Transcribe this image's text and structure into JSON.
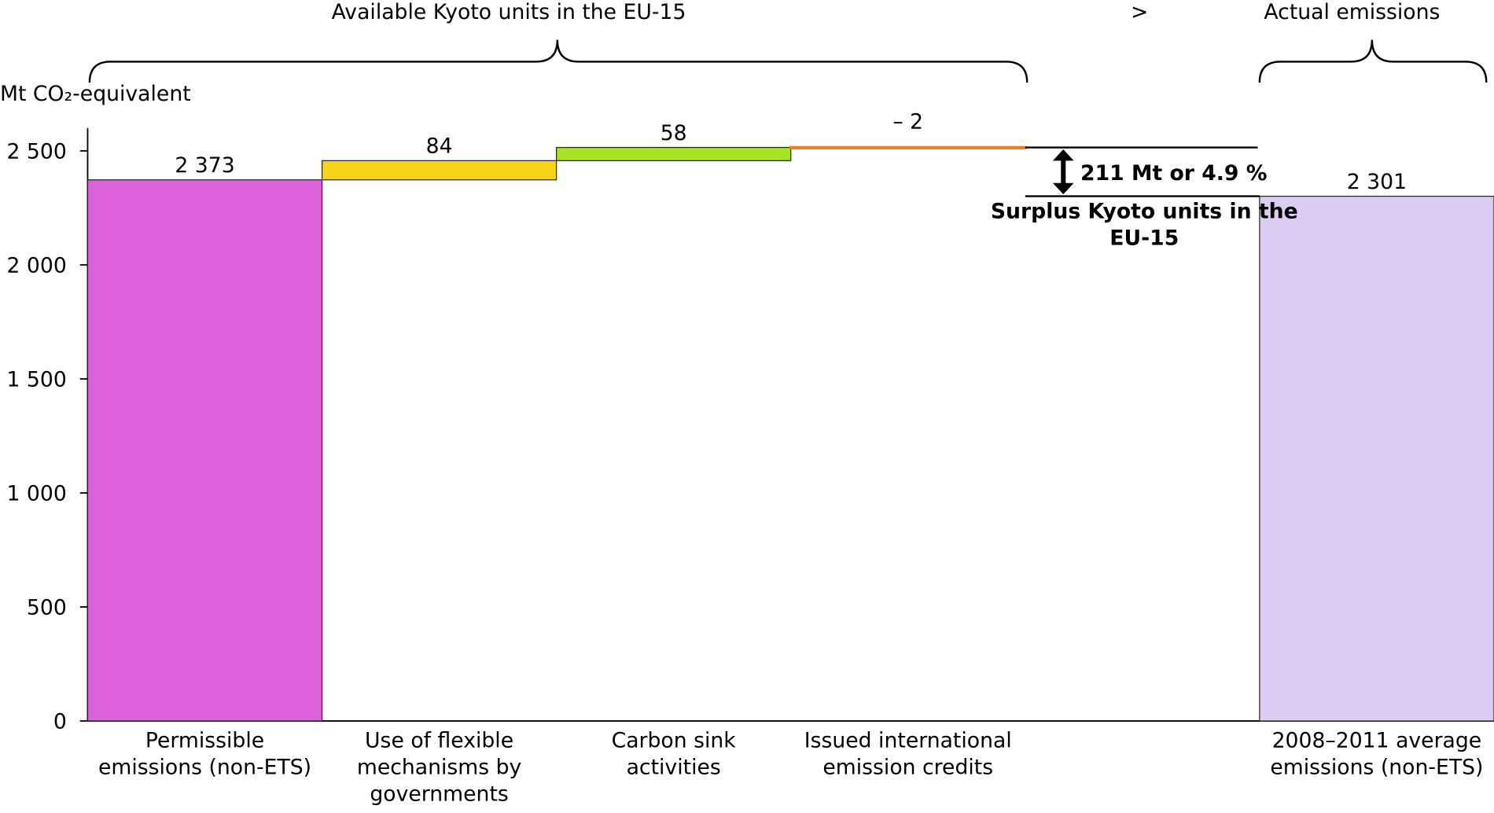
{
  "chart_data": {
    "type": "waterfall",
    "y_label": "Mt CO₂-equivalent",
    "categories": [
      "Permissible emissions (non-ETS)",
      "Use of flexible mechanisms by governments",
      "Carbon sink activities",
      "Issued international emission credits",
      null,
      "2008–2011 average emissions (non-ETS)"
    ],
    "values": [
      2373,
      84,
      58,
      -2,
      null,
      2301
    ],
    "value_labels": [
      "2 373",
      "84",
      "58",
      "– 2",
      null,
      "2 301"
    ],
    "measure": [
      "absolute",
      "relative",
      "relative",
      "relative",
      null,
      "absolute"
    ],
    "colors": [
      "#db62db",
      "#f7d417",
      "#a8e226",
      "#f47a20",
      null,
      "#dccdf3"
    ],
    "ylim": [
      0,
      2600
    ],
    "yticks": [
      0,
      500,
      {
        "value": 1000,
        "label": "1 000"
      },
      {
        "value": 1500,
        "label": "1 500"
      },
      {
        "value": 2000,
        "label": "2 000"
      },
      {
        "value": 2500,
        "label": "2 500"
      }
    ],
    "annotations": {
      "group_left": "Available Kyoto units in the EU-15",
      "comparison": ">",
      "group_right": "Actual emissions",
      "surplus_value": "211 Mt or 4.9 %",
      "surplus_label": "Surplus Kyoto units in the EU-15"
    }
  }
}
